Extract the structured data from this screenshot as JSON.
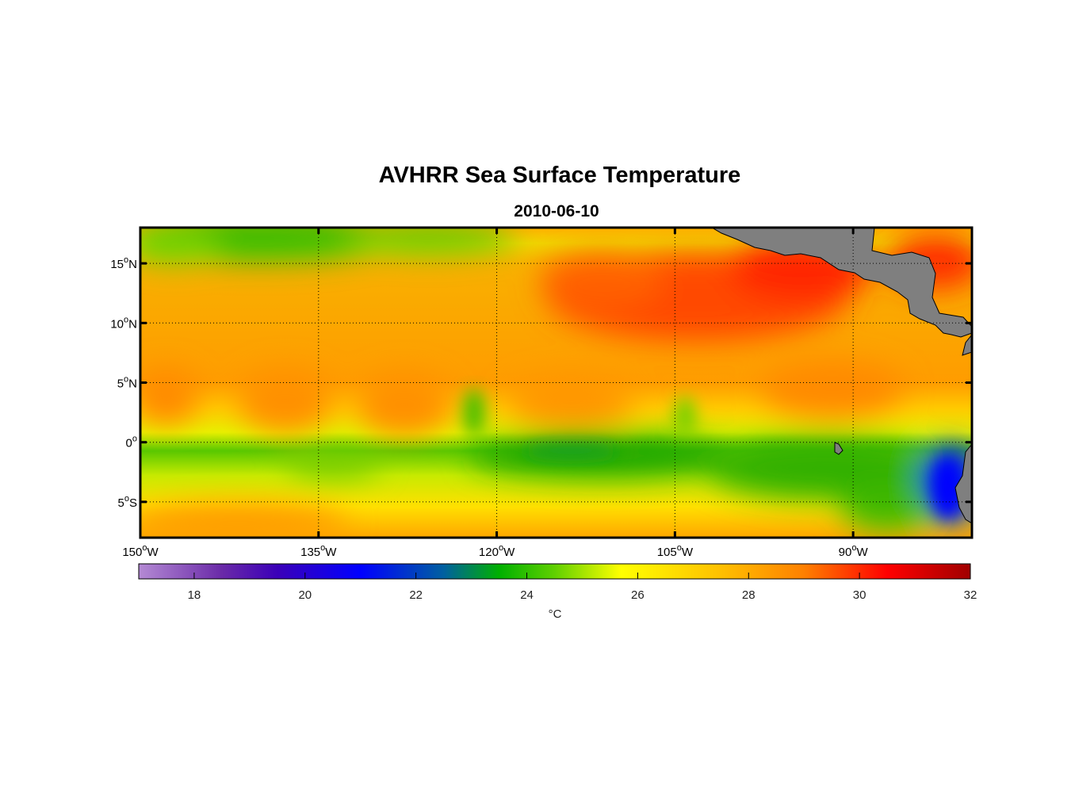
{
  "title": "AVHRR Sea Surface Temperature",
  "subtitle": "2010-06-10",
  "lat_ticks": [
    {
      "value": 15,
      "deg": "15",
      "hem": "N"
    },
    {
      "value": 10,
      "deg": "10",
      "hem": "N"
    },
    {
      "value": 5,
      "deg": "5",
      "hem": "N"
    },
    {
      "value": 0,
      "deg": "0",
      "hem": ""
    },
    {
      "value": -5,
      "deg": "5",
      "hem": "S"
    }
  ],
  "lon_ticks": [
    {
      "value": -150,
      "deg": "150",
      "hem": "W"
    },
    {
      "value": -135,
      "deg": "135",
      "hem": "W"
    },
    {
      "value": -120,
      "deg": "120",
      "hem": "W"
    },
    {
      "value": -105,
      "deg": "105",
      "hem": "W"
    },
    {
      "value": -90,
      "deg": "90",
      "hem": "W"
    }
  ],
  "extent": {
    "lon_min": -150,
    "lon_max": -80,
    "lat_min": -8,
    "lat_max": 18
  },
  "colorbar": {
    "min": 17,
    "max": 32,
    "ticks": [
      18,
      20,
      22,
      24,
      26,
      28,
      30,
      32
    ],
    "unit": "°C",
    "stops": [
      {
        "t": 17,
        "color": "#b48ad4"
      },
      {
        "t": 18.5,
        "color": "#6a2aa8"
      },
      {
        "t": 19.5,
        "color": "#3b00b8"
      },
      {
        "t": 21,
        "color": "#0000ff"
      },
      {
        "t": 22.5,
        "color": "#0060a0"
      },
      {
        "t": 23.5,
        "color": "#00b000"
      },
      {
        "t": 24.5,
        "color": "#60d000"
      },
      {
        "t": 25.7,
        "color": "#ffff00"
      },
      {
        "t": 27.5,
        "color": "#ffc000"
      },
      {
        "t": 29,
        "color": "#ff8000"
      },
      {
        "t": 30.5,
        "color": "#ff0000"
      },
      {
        "t": 32,
        "color": "#a00000"
      }
    ]
  },
  "colors": {
    "land": "#7f7f7f",
    "frame": "#000000",
    "grid": "#000000"
  }
}
